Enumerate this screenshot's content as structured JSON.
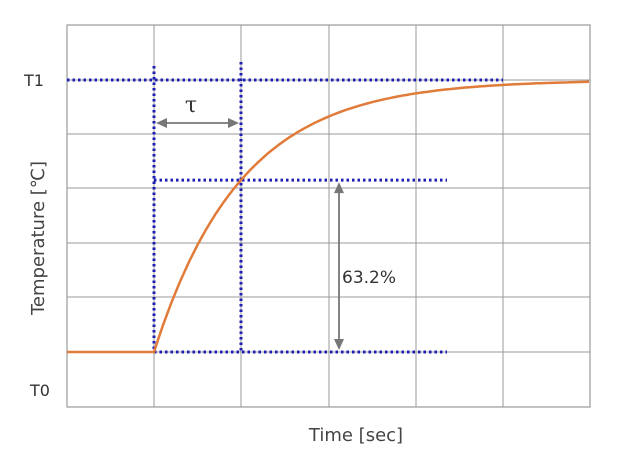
{
  "chart_data": {
    "type": "line",
    "title": "",
    "xlabel": "Time [sec]",
    "ylabel": "Temperature [℃]",
    "y_tick_labels": [
      "T1",
      "T0"
    ],
    "grid": true,
    "legend": "none",
    "t_start": 1,
    "time_constant": 1,
    "x_range": [
      0,
      6
    ],
    "y_levels": {
      "T0": 0,
      "T1": 1
    },
    "series": [
      {
        "x": [
          0,
          1,
          1.25,
          1.5,
          1.75,
          2,
          2.25,
          2.5,
          2.75,
          3,
          3.25,
          3.5,
          3.75,
          4,
          4.25,
          4.5,
          4.75,
          5,
          5.25,
          5.5,
          5.75,
          6
        ],
        "y": [
          0,
          0,
          0.221,
          0.393,
          0.528,
          0.632,
          0.713,
          0.777,
          0.826,
          0.865,
          0.895,
          0.918,
          0.936,
          0.95,
          0.961,
          0.97,
          0.977,
          0.982,
          0.986,
          0.989,
          0.991,
          0.993
        ]
      }
    ],
    "annotations": {
      "tau_label": "τ",
      "percent_label": "63.2%",
      "percent_value": 0.632
    },
    "colors": {
      "curve": "#e07b39",
      "guides": "#1f1fb4",
      "grid": "#999999",
      "arrows": "#777777",
      "text": "#333333"
    }
  }
}
